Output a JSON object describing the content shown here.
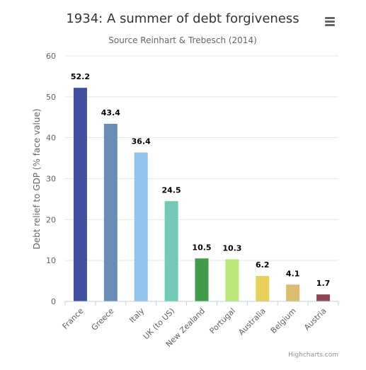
{
  "chart_data": {
    "type": "bar",
    "title": "1934: A summer of debt forgiveness",
    "subtitle": "Source Reinhart & Trebesch (2014)",
    "xlabel": "",
    "ylabel": "Debt relief to GDP (% face value)",
    "ylim": [
      0,
      60
    ],
    "yticks": [
      0,
      10,
      20,
      30,
      40,
      50,
      60
    ],
    "grid": true,
    "legend": "none",
    "categories": [
      "France",
      "Greece",
      "Italy",
      "UK (to US)",
      "New Zealand",
      "Portugal",
      "Australia",
      "Belgium",
      "Austria"
    ],
    "values": [
      52.2,
      43.4,
      36.4,
      24.5,
      10.5,
      10.3,
      6.2,
      4.1,
      1.7
    ],
    "data_labels": [
      "52.2",
      "43.4",
      "36.4",
      "24.5",
      "10.5",
      "10.3",
      "6.2",
      "4.1",
      "1.7"
    ],
    "colors": [
      "#4150a0",
      "#6a8db5",
      "#93c3ec",
      "#72c9b5",
      "#429b4d",
      "#bde879",
      "#e6d057",
      "#dbbe6f",
      "#8e4557"
    ]
  },
  "credits": "Highcharts.com",
  "menu": {
    "icon": "hamburger-menu-icon"
  }
}
